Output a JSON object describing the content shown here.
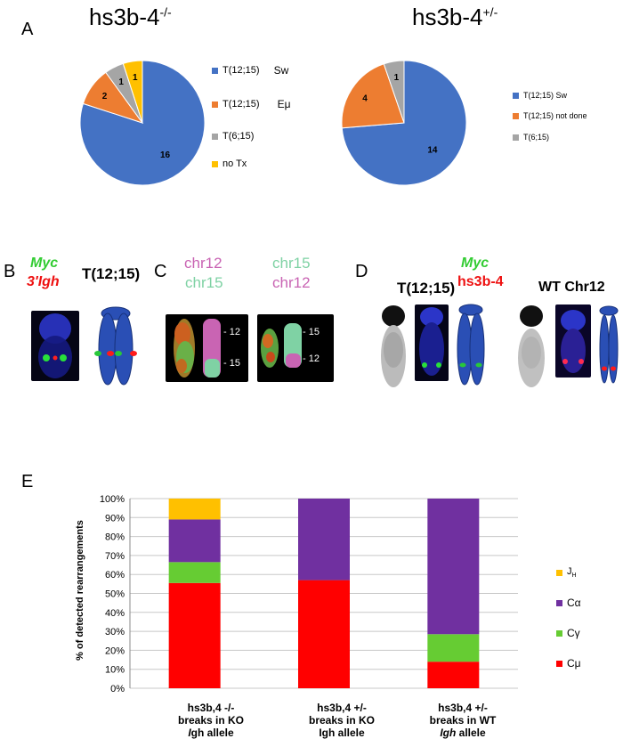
{
  "panelA": {
    "letter": "A",
    "left_pie": {
      "title": "hs3b-4",
      "title_sup": "-/-",
      "slices": [
        {
          "label": "T(12;15)",
          "label_suffix": "Sw",
          "value": 16,
          "color": "#4472c4"
        },
        {
          "label": "T(12;15)",
          "label_suffix": "Eμ",
          "value": 2,
          "color": "#ed7d31"
        },
        {
          "label": "T(6;15)",
          "label_suffix": "",
          "value": 1,
          "color": "#a5a5a5"
        },
        {
          "label": "no Tx",
          "label_suffix": "",
          "value": 1,
          "color": "#ffc000"
        }
      ]
    },
    "right_pie": {
      "title": "hs3b-4",
      "title_sup": "+/-",
      "slices": [
        {
          "label": "T(12;15) Sw",
          "value": 14,
          "color": "#4472c4"
        },
        {
          "label": "T(12;15) not done",
          "value": 4,
          "color": "#ed7d31"
        },
        {
          "label": "T(6;15)",
          "value": 1,
          "color": "#a5a5a5"
        }
      ]
    }
  },
  "panelB": {
    "letter": "B",
    "probe1": "Myc",
    "probe2": "3'Igh",
    "chromosome": "T(12;15)",
    "probe1_color": "#33cc33",
    "probe2_color": "#ee1111"
  },
  "panelC": {
    "letter": "C",
    "left_top": "chr12",
    "left_bottom": "chr15",
    "right_top": "chr15",
    "right_bottom": "chr12",
    "left_tick_top": "12",
    "left_tick_bottom": "15",
    "right_tick_top": "15",
    "right_tick_bottom": "12",
    "chr12_color": "#c964b3",
    "chr15_color": "#7fd2a4"
  },
  "panelD": {
    "letter": "D",
    "probe1": "Myc",
    "probe2": "hs3b-4",
    "left_chromosome": "T(12;15)",
    "right_chromosome": "WT Chr12"
  },
  "panelE": {
    "letter": "E",
    "chart_data": {
      "type": "bar",
      "stacked": true,
      "ylabel": "% of detected rearrangements",
      "ylim": [
        0,
        100
      ],
      "yticks": [
        "0%",
        "10%",
        "20%",
        "30%",
        "40%",
        "50%",
        "60%",
        "70%",
        "80%",
        "90%",
        "100%"
      ],
      "grid": true,
      "legend_position": "right",
      "categories": [
        [
          "hs3b,4 -/-",
          "breaks in KO",
          "Igh allele"
        ],
        [
          "hs3b,4 +/-",
          "breaks in KO",
          "Igh allele"
        ],
        [
          "hs3b,4 +/-",
          "breaks in WT",
          "Igh allele"
        ]
      ],
      "series": [
        {
          "name": "Cμ",
          "color": "#ff0000",
          "values": [
            55.5,
            57,
            14
          ]
        },
        {
          "name": "Cγ",
          "color": "#66cc33",
          "values": [
            11,
            0,
            14.5
          ]
        },
        {
          "name": "Cα",
          "color": "#7030a0",
          "values": [
            22.5,
            43,
            71.5
          ]
        },
        {
          "name": "JH",
          "color": "#ffc000",
          "values": [
            11,
            0,
            0
          ]
        }
      ]
    }
  }
}
